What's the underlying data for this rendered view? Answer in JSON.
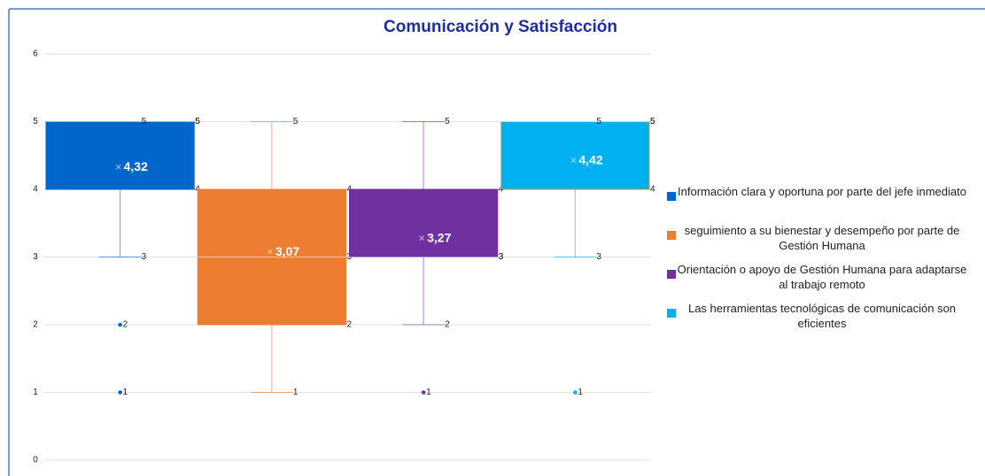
{
  "chart_data": {
    "type": "box",
    "title": "Comunicación y Satisfacción",
    "ylim": [
      0,
      6
    ],
    "yticks": [
      0,
      1,
      2,
      3,
      4,
      5,
      6
    ],
    "grid": true,
    "legend": "right",
    "series": [
      {
        "name": "Información clara y oportuna por parte del jefe inmediato",
        "color": "#0066cc",
        "min": 3,
        "q1": 4,
        "median": 5,
        "q3": 5,
        "max": 5,
        "mean": 4.32,
        "mean_label": "4,32",
        "outliers": [
          2,
          1
        ]
      },
      {
        "name": "seguimiento a su bienestar y desempeño por parte de Gestión Humana",
        "color": "#ed7d31",
        "min": 1,
        "q1": 2,
        "median": 3,
        "q3": 4,
        "max": 5,
        "mean": 3.07,
        "mean_label": "3,07",
        "outliers": []
      },
      {
        "name": "Orientación o apoyo de Gestión Humana para adaptarse al trabajo remoto",
        "color": "#7030a0",
        "min": 2,
        "q1": 3,
        "median": 3,
        "q3": 4,
        "max": 5,
        "mean": 3.27,
        "mean_label": "3,27",
        "outliers": [
          1
        ]
      },
      {
        "name": "Las herramientas tecnológicas de comunicación son eficientes",
        "color": "#00b0f0",
        "min": 3,
        "q1": 4,
        "median": 5,
        "q3": 5,
        "max": 5,
        "mean": 4.42,
        "mean_label": "4,42",
        "outliers": [
          1
        ]
      }
    ]
  }
}
